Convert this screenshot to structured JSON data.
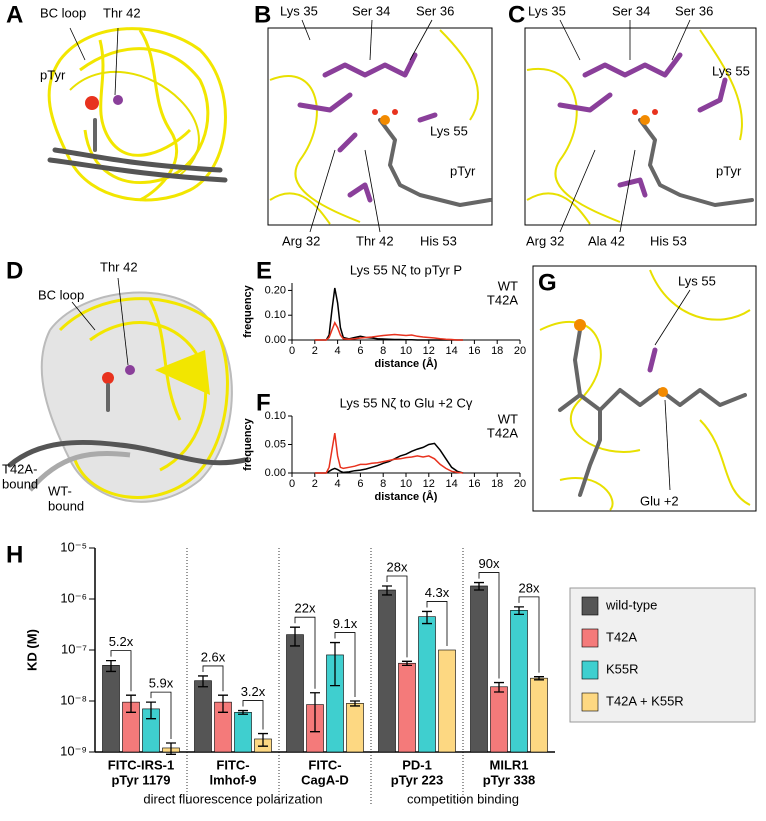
{
  "panel_letters": [
    "A",
    "B",
    "C",
    "D",
    "E",
    "F",
    "G",
    "H"
  ],
  "panel_a": {
    "labels": [
      "BC loop",
      "Thr 42",
      "pTyr"
    ]
  },
  "panel_b": {
    "labels": [
      "Lys 35",
      "Ser 34",
      "Ser 36",
      "Lys 55",
      "pTyr",
      "Arg 32",
      "Thr 42",
      "His 53"
    ]
  },
  "panel_c": {
    "labels": [
      "Lys 35",
      "Ser 34",
      "Ser 36",
      "Lys 55",
      "pTyr",
      "Arg 32",
      "Ala 42",
      "His 53"
    ]
  },
  "panel_d": {
    "labels": [
      "BC loop",
      "Thr 42",
      "T42A-",
      "bound",
      "WT-",
      "bound"
    ]
  },
  "panel_g": {
    "labels": [
      "Lys 55",
      "Glu +2"
    ]
  },
  "chart_data": [
    {
      "type": "line",
      "title": "Lys 55 Nζ to pTyr P",
      "x_label": "distance (Å)",
      "y_label": "frequency",
      "x": [
        2,
        2.5,
        3,
        3.25,
        3.5,
        3.75,
        4,
        4.25,
        4.5,
        5,
        5.5,
        6,
        6.5,
        7,
        7.5,
        8,
        8.5,
        9,
        9.5,
        10,
        10.5,
        11,
        11.5,
        12,
        12.5,
        13,
        13.5,
        14,
        14.5,
        15
      ],
      "series": [
        {
          "name": "WT",
          "color": "#000000",
          "values": [
            0,
            0,
            0,
            0.02,
            0.12,
            0.21,
            0.15,
            0.05,
            0.01,
            0.005,
            0.01,
            0.015,
            0.01,
            0.008,
            0.005,
            0.004,
            0.003,
            0.002,
            0.002,
            0.001,
            0.001,
            0,
            0,
            0,
            0,
            0,
            0,
            0,
            0,
            0
          ]
        },
        {
          "name": "T42A",
          "color": "#e8321e",
          "values": [
            0,
            0,
            0,
            0.01,
            0.04,
            0.07,
            0.05,
            0.02,
            0.005,
            0.003,
            0.005,
            0.008,
            0.01,
            0.012,
            0.015,
            0.018,
            0.02,
            0.022,
            0.02,
            0.018,
            0.02,
            0.015,
            0.012,
            0.01,
            0.008,
            0.005,
            0.003,
            0.002,
            0,
            0
          ]
        }
      ],
      "xlim": [
        0,
        20
      ],
      "xticks": [
        0,
        2,
        4,
        6,
        8,
        10,
        12,
        14,
        16,
        18,
        20
      ],
      "ylim": [
        0,
        0.23
      ],
      "yticks": [
        {
          "value": 0,
          "label": "0.00"
        },
        {
          "value": 0.1,
          "label": "0.10"
        },
        {
          "value": 0.2,
          "label": "0.20"
        }
      ],
      "legend": "upper right"
    },
    {
      "type": "line",
      "title": "Lys 55 Nζ to Glu +2 Cγ",
      "x_label": "distance (Å)",
      "y_label": "frequency",
      "x": [
        2,
        2.5,
        3,
        3.25,
        3.5,
        3.75,
        4,
        4.25,
        4.5,
        5,
        5.5,
        6,
        6.5,
        7,
        7.5,
        8,
        8.5,
        9,
        9.5,
        10,
        10.5,
        11,
        11.5,
        12,
        12.5,
        13,
        13.5,
        14,
        14.5,
        15
      ],
      "series": [
        {
          "name": "WT",
          "color": "#000000",
          "values": [
            0,
            0,
            0,
            0.003,
            0.006,
            0.008,
            0.006,
            0.003,
            0.001,
            0.002,
            0.004,
            0.005,
            0.007,
            0.01,
            0.013,
            0.017,
            0.02,
            0.025,
            0.03,
            0.033,
            0.038,
            0.042,
            0.045,
            0.05,
            0.052,
            0.04,
            0.025,
            0.01,
            0.003,
            0
          ]
        },
        {
          "name": "T42A",
          "color": "#e8321e",
          "values": [
            0,
            0,
            0,
            0.01,
            0.04,
            0.07,
            0.03,
            0.01,
            0.008,
            0.01,
            0.012,
            0.015,
            0.015,
            0.017,
            0.018,
            0.02,
            0.022,
            0.024,
            0.025,
            0.027,
            0.028,
            0.03,
            0.028,
            0.03,
            0.025,
            0.015,
            0.008,
            0.003,
            0.001,
            0
          ]
        }
      ],
      "xlim": [
        0,
        20
      ],
      "xticks": [
        0,
        2,
        4,
        6,
        8,
        10,
        12,
        14,
        16,
        18,
        20
      ],
      "ylim": [
        0,
        0.1
      ],
      "yticks": [
        {
          "value": 0,
          "label": "0.00"
        },
        {
          "value": 0.05,
          "label": "0.05"
        },
        {
          "value": 0.1,
          "label": "0.10"
        }
      ],
      "legend": "upper right"
    },
    {
      "type": "bar",
      "y_label": "KD (M)",
      "y_scale": "log",
      "categories": [
        [
          "FITC-IRS-1",
          "pTyr 1179"
        ],
        [
          "FITC-",
          "lmhof-9"
        ],
        [
          "FITC-",
          "CagA-D"
        ],
        [
          "PD-1",
          "pTyr 223"
        ],
        [
          "MILR1",
          "pTyr 338"
        ]
      ],
      "group_labels": [
        "direct fluorescence polarization",
        "competition binding"
      ],
      "series": [
        {
          "name": "wild-type",
          "color": "#555555",
          "values": [
            5e-08,
            2.5e-08,
            2e-07,
            1.5e-06,
            1.8e-06
          ],
          "errors": [
            1.2e-08,
            6e-09,
            8e-08,
            3e-07,
            3e-07
          ]
        },
        {
          "name": "T42A",
          "color": "#f47a7a",
          "values": [
            9.5e-09,
            9.5e-09,
            8.5e-09,
            5.5e-08,
            1.9e-08
          ],
          "errors": [
            3.5e-09,
            3.5e-09,
            6e-09,
            5e-09,
            4e-09
          ]
        },
        {
          "name": "K55R",
          "color": "#3fcfcf",
          "values": [
            7e-09,
            6e-09,
            8e-08,
            4.5e-07,
            6e-07
          ],
          "errors": [
            2.5e-09,
            5e-10,
            6e-08,
            1.2e-07,
            1e-07
          ]
        },
        {
          "name": "T42A + K55R",
          "color": "#fdd882",
          "values": [
            1.2e-09,
            1.8e-09,
            9e-09,
            1e-07,
            2.8e-08
          ],
          "errors": [
            3e-10,
            5e-10,
            1e-09,
            0,
            2e-09
          ]
        }
      ],
      "comparisons": [
        [
          "5.2x",
          "5.9x"
        ],
        [
          "2.6x",
          "3.2x"
        ],
        [
          "22x",
          "9.1x"
        ],
        [
          "28x",
          "4.3x"
        ],
        [
          "90x",
          "28x"
        ]
      ],
      "ylim": [
        1e-09,
        1e-05
      ],
      "yticks": [
        {
          "value": 1e-09,
          "label": "10⁻⁹"
        },
        {
          "value": 1e-08,
          "label": "10⁻⁸"
        },
        {
          "value": 1e-07,
          "label": "10⁻⁷"
        },
        {
          "value": 1e-06,
          "label": "10⁻⁶"
        },
        {
          "value": 1e-05,
          "label": "10⁻⁵"
        }
      ],
      "legend": "right"
    }
  ]
}
